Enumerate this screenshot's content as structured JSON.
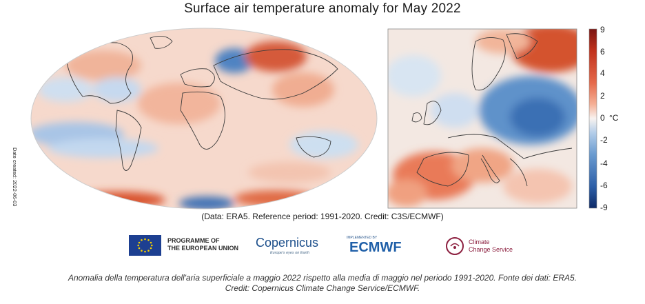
{
  "title": "Surface air temperature anomaly for May 2022",
  "date_created": "Date created: 2022-06-03",
  "data_note": "(Data: ERA5.  Reference period: 1991-2020.  Credit: C3S/ECMWF)",
  "colorbar": {
    "units": "°C",
    "ticks": [
      "9",
      "6",
      "4",
      "2",
      "0",
      "-2",
      "-4",
      "-6",
      "-9"
    ],
    "colors": [
      "#8b1a12",
      "#c8381f",
      "#e9714f",
      "#f6b79d",
      "#f7f2ef",
      "#aac6e6",
      "#5c8fc8",
      "#2a5ea8",
      "#0f2b6c"
    ]
  },
  "logos": {
    "eu": [
      "PROGRAMME OF",
      "THE EUROPEAN UNION"
    ],
    "copernicus": "Copernicus",
    "copernicus_tagline": "Europe's eyes on Earth",
    "ecmwf_tagline": "IMPLEMENTED BY",
    "ecmwf": "ECMWF",
    "c3s": [
      "Climate",
      "Change Service"
    ]
  },
  "caption": [
    "Anomalia della temperatura dell'aria superficiale a maggio 2022 rispetto alla media di maggio nel periodo 1991-2020. Fonte dei dati: ERA5.",
    "Credit: Copernicus Climate Change Service/ECMWF."
  ]
}
